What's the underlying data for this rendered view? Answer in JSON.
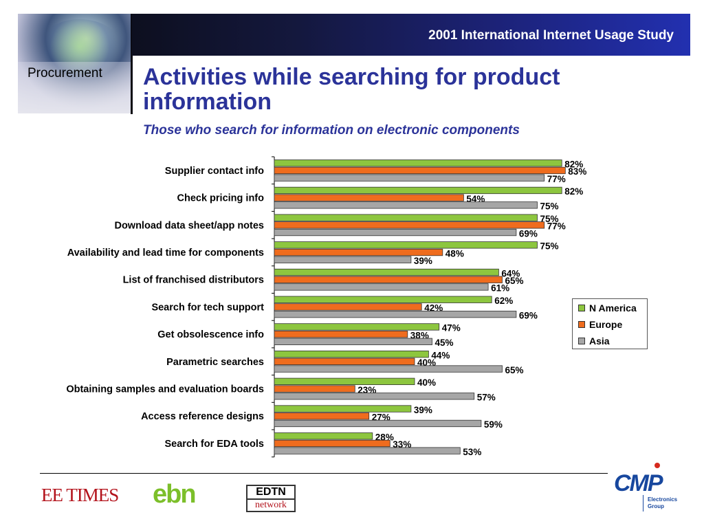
{
  "header": {
    "title": "2001 International Internet Usage Study"
  },
  "sidebar": {
    "section": "Procurement"
  },
  "slide": {
    "title": "Activities while searching for product information",
    "subtitle": "Those who search for information on electronic components"
  },
  "footer": {
    "logo_eetimes": "EE TIMES",
    "logo_ebn": "ebn",
    "logo_edtn_top": "EDTN",
    "logo_edtn_bottom": "network",
    "logo_cmp": "CMP",
    "logo_cmp_sub1": "Electronics",
    "logo_cmp_sub2": "Group"
  },
  "chart_data": {
    "type": "bar",
    "orientation": "horizontal",
    "categories": [
      "Supplier contact info",
      "Check pricing info",
      "Download data sheet/app notes",
      "Availability and lead time for components",
      "List of franchised distributors",
      "Search for tech support",
      "Get obsolescence info",
      "Parametric searches",
      "Obtaining samples and evaluation boards",
      "Access reference designs",
      "Search for EDA tools"
    ],
    "series": [
      {
        "name": "N America",
        "color": "#8dc63f",
        "values": [
          82,
          82,
          75,
          75,
          64,
          62,
          47,
          44,
          40,
          39,
          28
        ]
      },
      {
        "name": "Europe",
        "color": "#ef6c1e",
        "values": [
          83,
          54,
          77,
          48,
          65,
          42,
          38,
          40,
          23,
          27,
          33
        ]
      },
      {
        "name": "Asia",
        "color": "#a6a6a6",
        "values": [
          77,
          75,
          69,
          39,
          61,
          69,
          45,
          65,
          57,
          59,
          53
        ]
      }
    ],
    "value_suffix": "%",
    "xlim": [
      0,
      100
    ],
    "legend_position": "right"
  }
}
